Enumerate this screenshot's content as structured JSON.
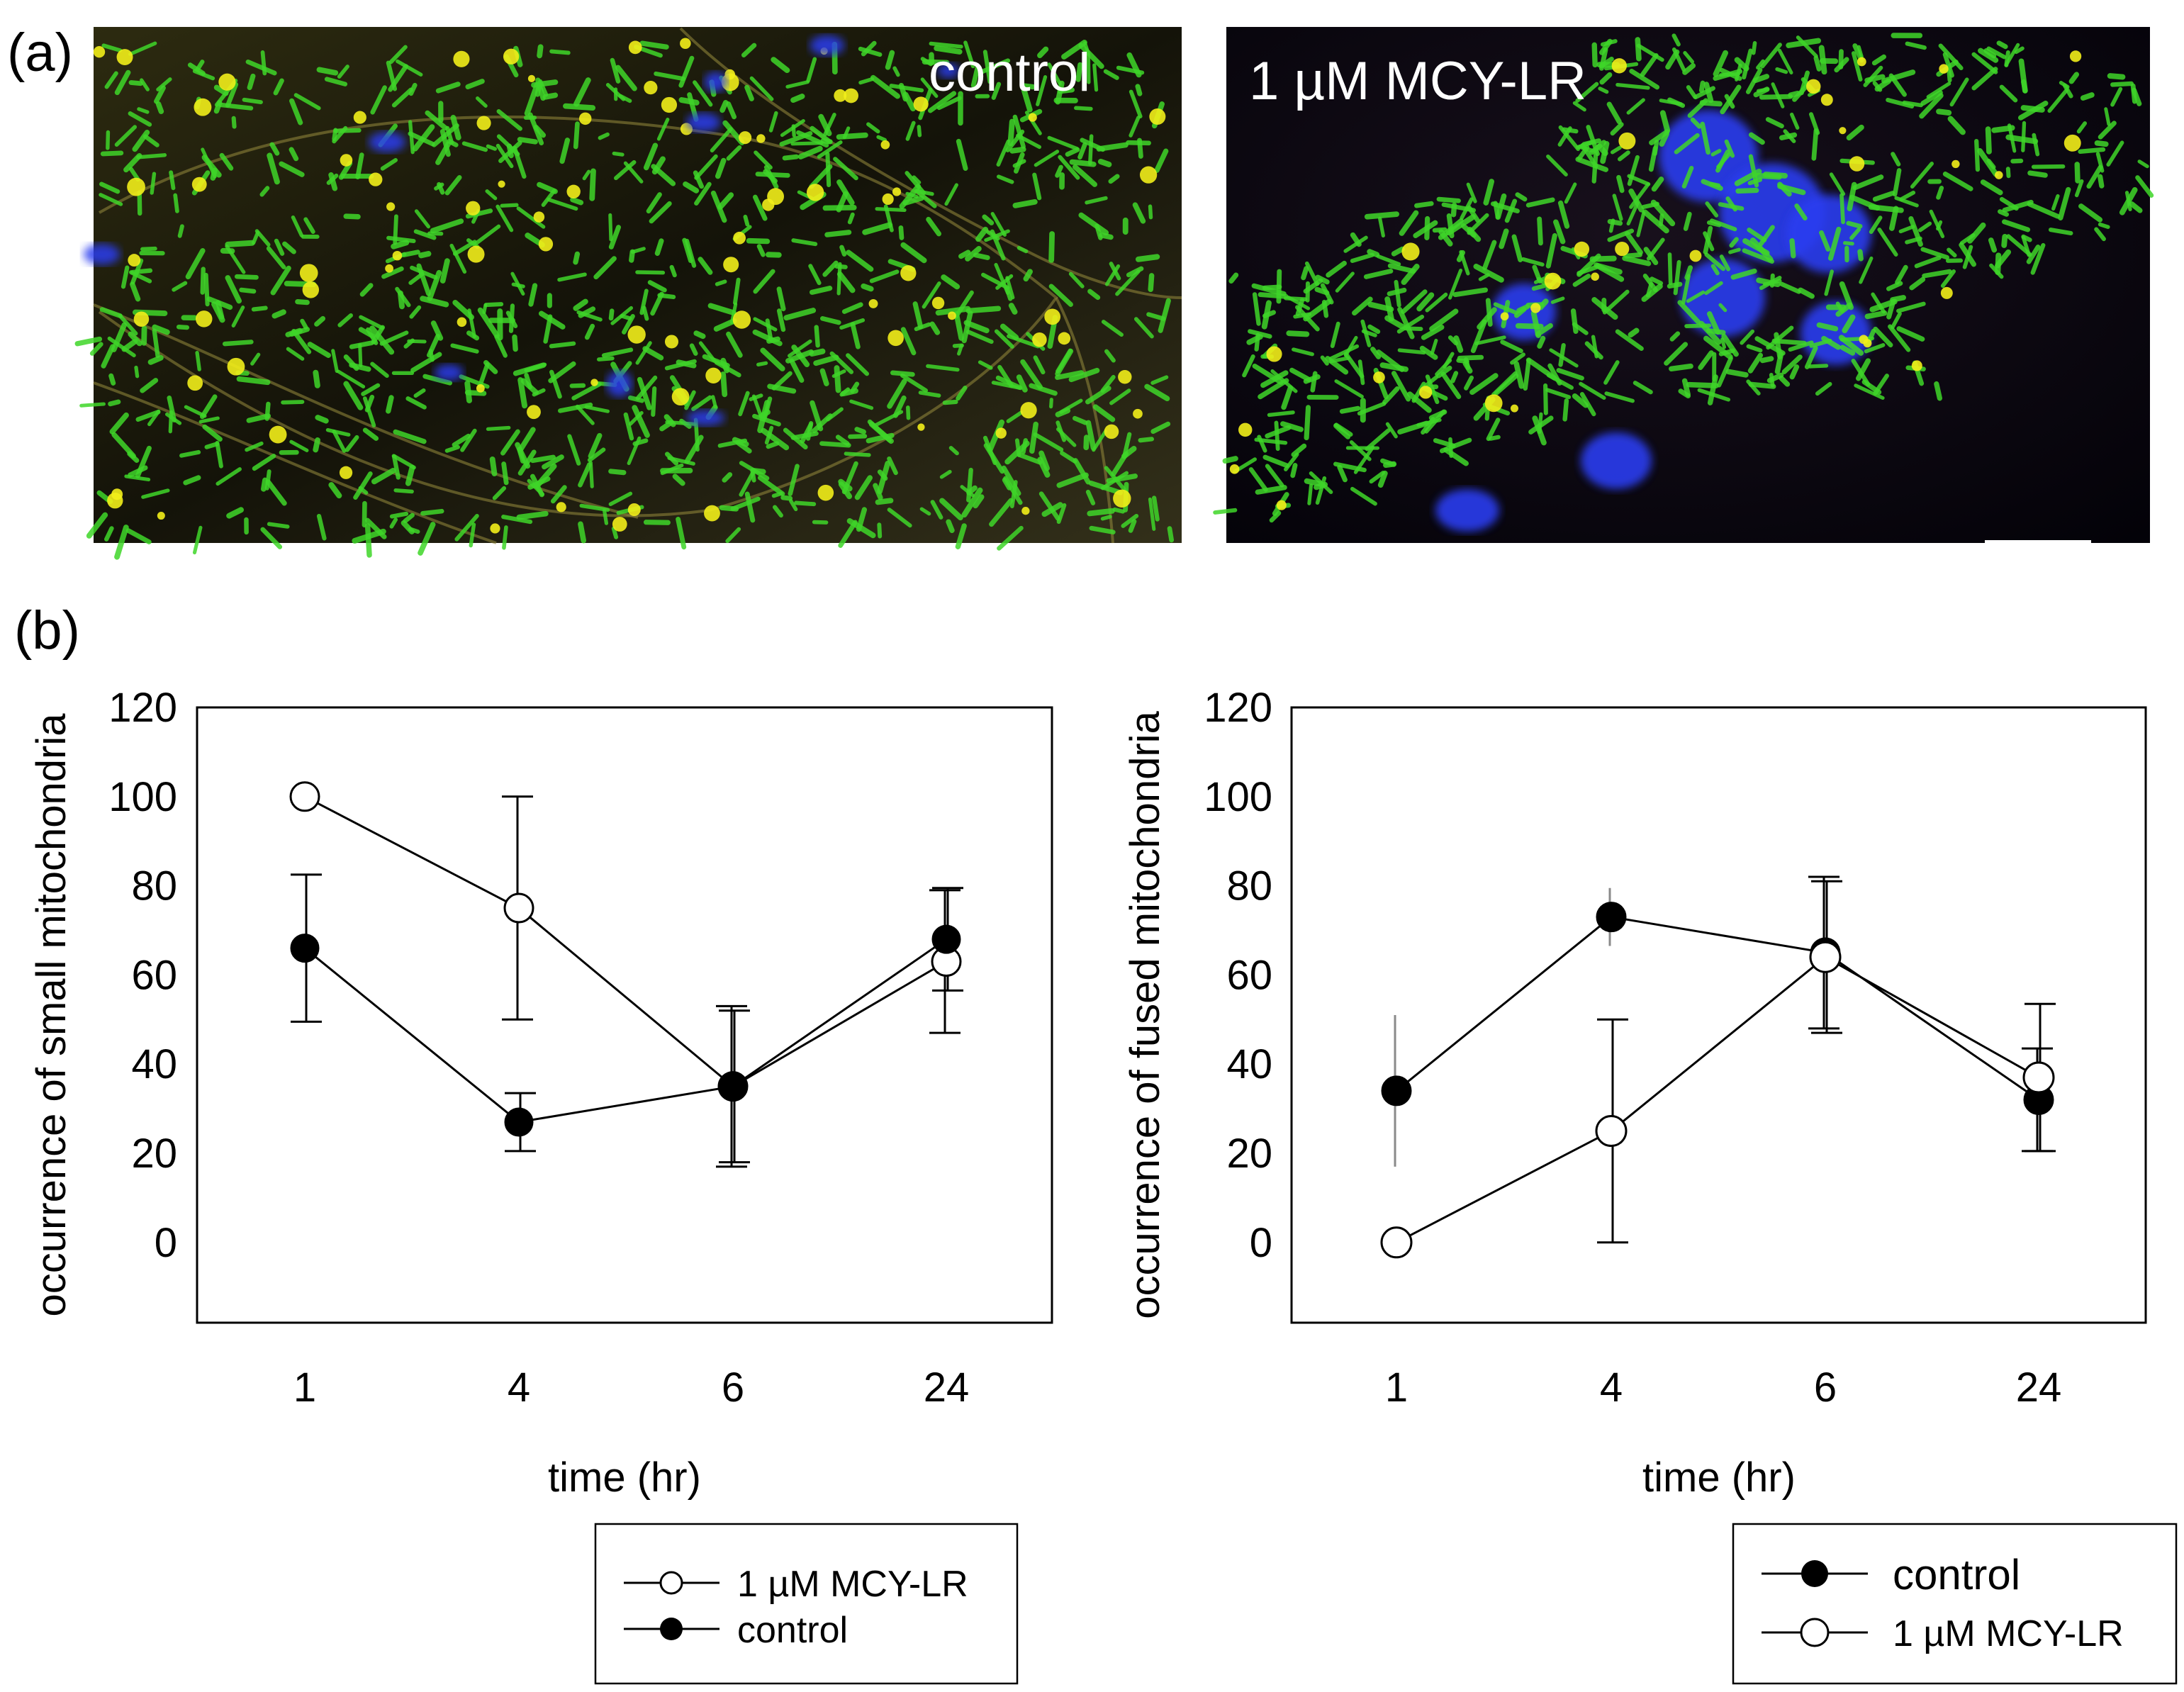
{
  "panel_labels": {
    "a": "(a)",
    "b": "(b)"
  },
  "micrographs": [
    {
      "label": "control",
      "colors": {
        "background": "#1c1a0c",
        "mito": "#3fd629",
        "puncta": "#f2ee1a",
        "nuclei": "#2a3df0"
      }
    },
    {
      "label": "1 µM MCY-LR",
      "colors": {
        "background": "#06040f",
        "mito": "#3fd629",
        "puncta": "#f2ee1a",
        "nuclei": "#2a3df0"
      }
    }
  ],
  "chart_data": [
    {
      "type": "line",
      "xlabel": "time (hr)",
      "ylabel": "occurrence of small mitochondria",
      "categories": [
        "1",
        "4",
        "6",
        "24"
      ],
      "ylim": [
        -18,
        120
      ],
      "yticks": [
        0,
        20,
        40,
        60,
        80,
        100,
        120
      ],
      "grid": false,
      "legend_placement": "below-center",
      "series": [
        {
          "name": "1 µM MCY-LR",
          "marker": "open-circle",
          "values": [
            100,
            75,
            35,
            63
          ],
          "errors": [
            0,
            25,
            18,
            16
          ]
        },
        {
          "name": "control",
          "marker": "filled-circle",
          "values": [
            66,
            27,
            35,
            68
          ],
          "errors": [
            16.5,
            6.5,
            17,
            11.5
          ]
        }
      ]
    },
    {
      "type": "line",
      "xlabel": "time (hr)",
      "ylabel": "occurrence of fused mitochondria",
      "categories": [
        "1",
        "4",
        "6",
        "24"
      ],
      "ylim": [
        -18,
        120
      ],
      "yticks": [
        0,
        20,
        40,
        60,
        80,
        100,
        120
      ],
      "grid": false,
      "legend_placement": "below-right",
      "series": [
        {
          "name": "control",
          "marker": "filled-circle",
          "values": [
            34,
            73,
            65,
            32
          ],
          "errors": [
            17,
            6.5,
            17,
            11.5
          ]
        },
        {
          "name": "1 µM MCY-LR",
          "marker": "open-circle",
          "values": [
            0,
            25,
            64,
            37
          ],
          "errors": [
            0,
            25,
            17,
            16.5
          ]
        }
      ]
    }
  ]
}
